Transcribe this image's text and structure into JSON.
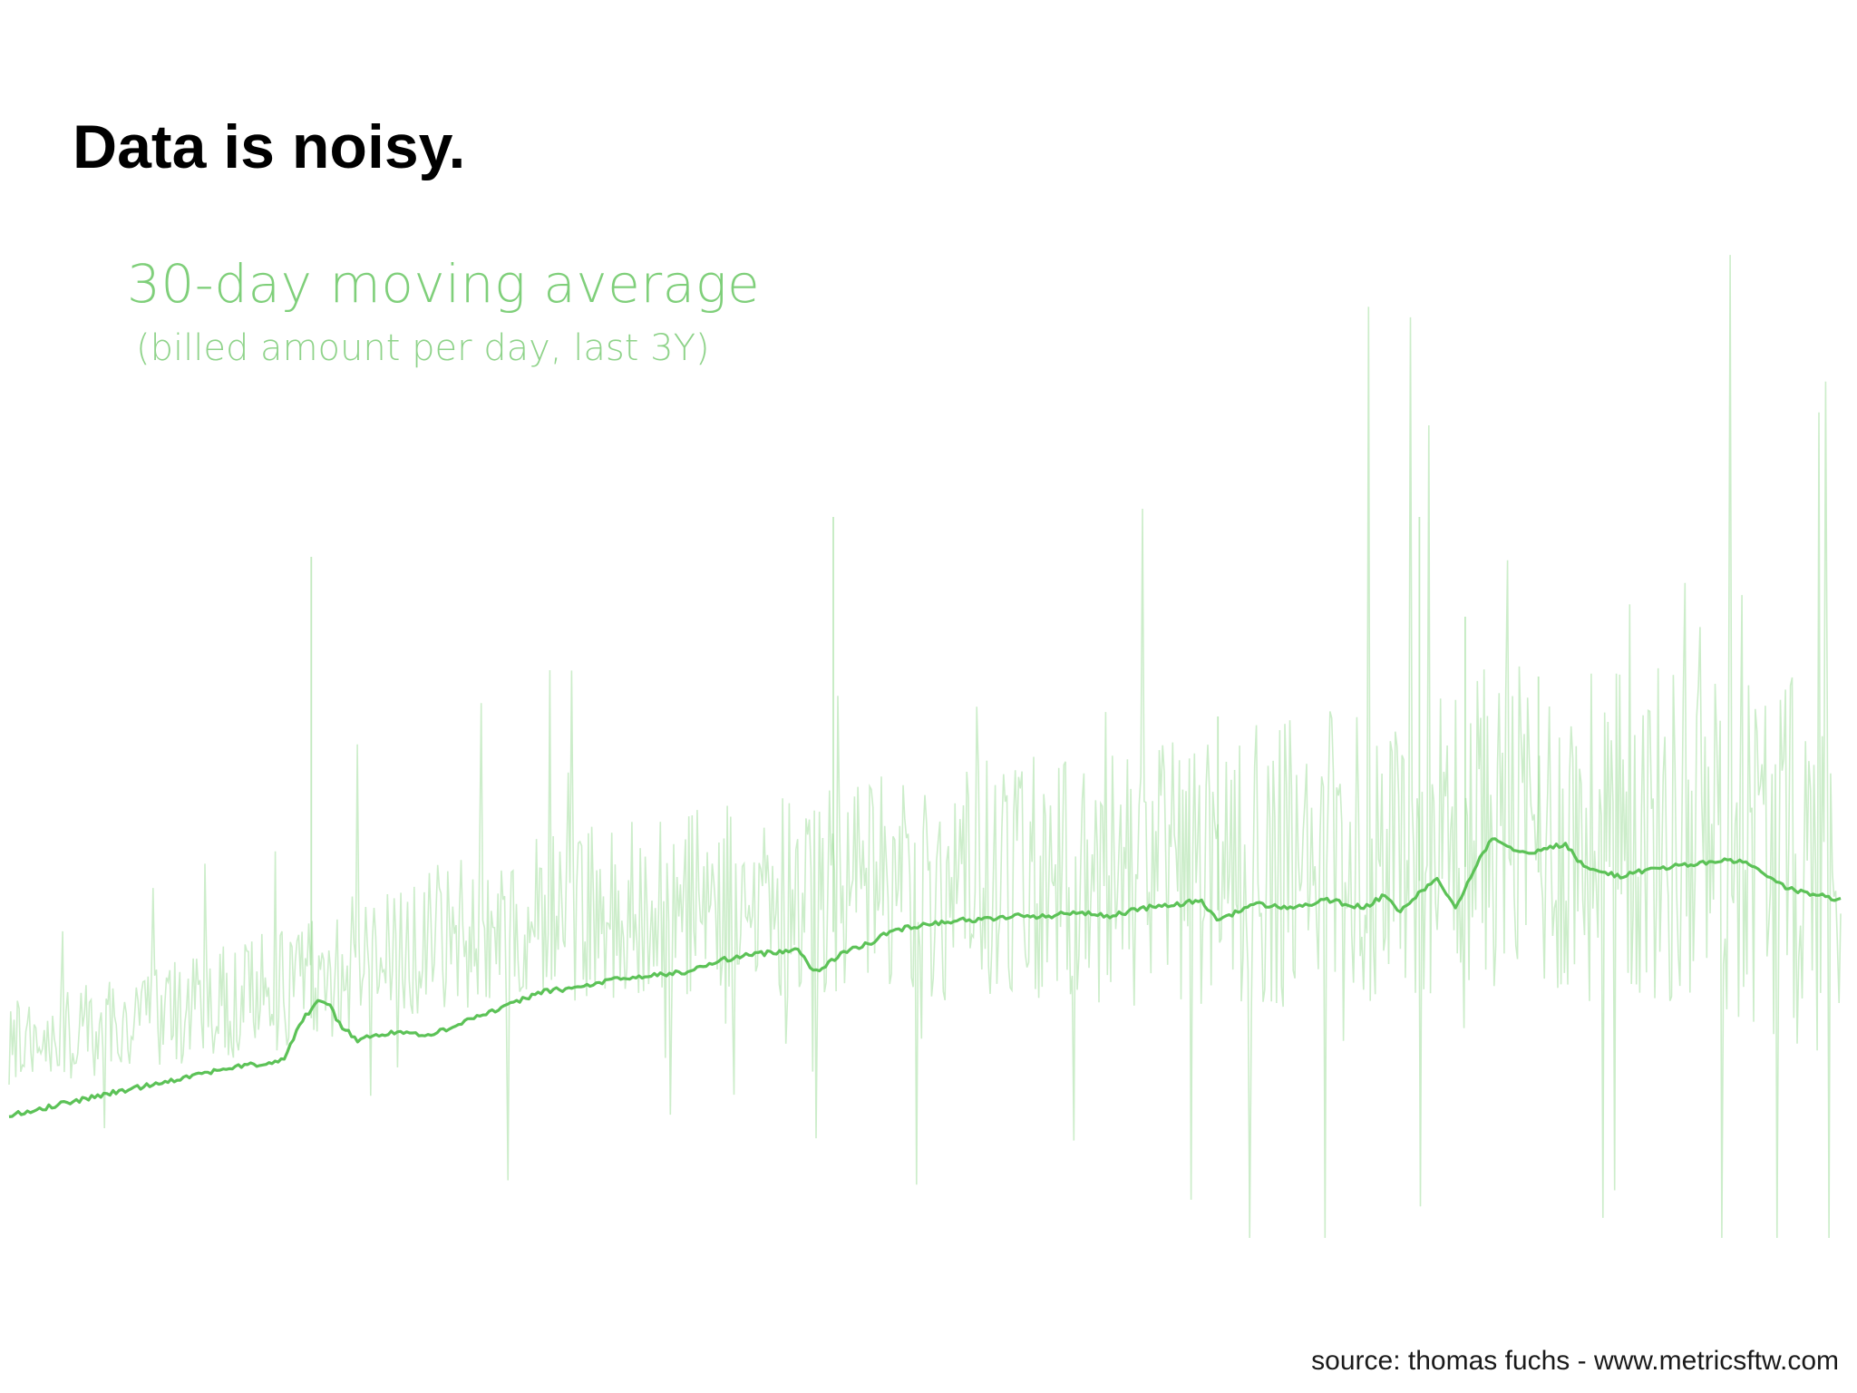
{
  "slide": {
    "title": "Data is noisy.",
    "source": "source: thomas fuchs - www.metricsftw.com"
  },
  "colors": {
    "raw_series": "#8fd88a",
    "average_series": "#5cc257",
    "chart_text": "#7fcf7a",
    "title_text": "#000000"
  },
  "chart_data": {
    "type": "line",
    "title": "30-day moving average",
    "subtitle": "(billed amount per day, last 3Y)",
    "xlabel": "",
    "ylabel": "",
    "grid": false,
    "axes_visible": false,
    "legend": "none",
    "period": "last 3Y",
    "series": [
      {
        "key": "raw_daily",
        "style": "thin light-green",
        "trend_path": [
          [
            0,
            17
          ],
          [
            5,
            22
          ],
          [
            10,
            26
          ],
          [
            15,
            32
          ],
          [
            20,
            40
          ],
          [
            25,
            46
          ],
          [
            30,
            50
          ],
          [
            35,
            53
          ],
          [
            40,
            55
          ],
          [
            45,
            56
          ],
          [
            50,
            58
          ],
          [
            55,
            59
          ],
          [
            60,
            60
          ],
          [
            65,
            61
          ],
          [
            70,
            63
          ],
          [
            75,
            66
          ],
          [
            80,
            73
          ],
          [
            85,
            70
          ],
          [
            90,
            70
          ],
          [
            95,
            68
          ],
          [
            100,
            60
          ]
        ],
        "notable_spikes": [
          [
            16.5,
            140
          ],
          [
            45,
            150
          ],
          [
            66,
            100
          ],
          [
            77,
            150
          ],
          [
            79.5,
            125
          ],
          [
            83.5,
            110
          ]
        ]
      },
      {
        "key": "moving_average_30d",
        "style": "thick green",
        "x": [
          0,
          1,
          3,
          5,
          8,
          10,
          12,
          14,
          15,
          15.5,
          16,
          17,
          17.5,
          18,
          19,
          20,
          21,
          23,
          24,
          25,
          27,
          29,
          31,
          33,
          35,
          37,
          39,
          40,
          42,
          43,
          44,
          46,
          47,
          48,
          50,
          52,
          53,
          55,
          57,
          58,
          60,
          62,
          64,
          65,
          66,
          68,
          70,
          72,
          74,
          75,
          76,
          77,
          78,
          79,
          80,
          81,
          82,
          83,
          84,
          85,
          86,
          87,
          88,
          89,
          90,
          92,
          94,
          95,
          96,
          97,
          98,
          99,
          100
        ],
        "y": [
          0,
          1,
          3,
          5,
          8,
          10,
          12,
          13,
          14,
          19,
          24,
          29,
          28,
          23,
          19,
          20,
          21,
          20,
          22,
          24,
          27,
          31,
          32,
          34,
          35,
          36,
          39,
          40,
          41,
          42,
          36,
          42,
          43,
          46,
          48,
          49,
          49,
          50,
          50,
          51,
          50,
          52,
          53,
          54,
          49,
          53,
          52,
          54,
          52,
          55,
          51,
          56,
          59,
          52,
          62,
          70,
          67,
          66,
          67,
          68,
          62,
          61,
          60,
          61,
          62,
          63,
          64,
          63,
          60,
          57,
          56,
          55,
          54
        ],
        "ylim": [
          0,
          100
        ]
      }
    ]
  }
}
